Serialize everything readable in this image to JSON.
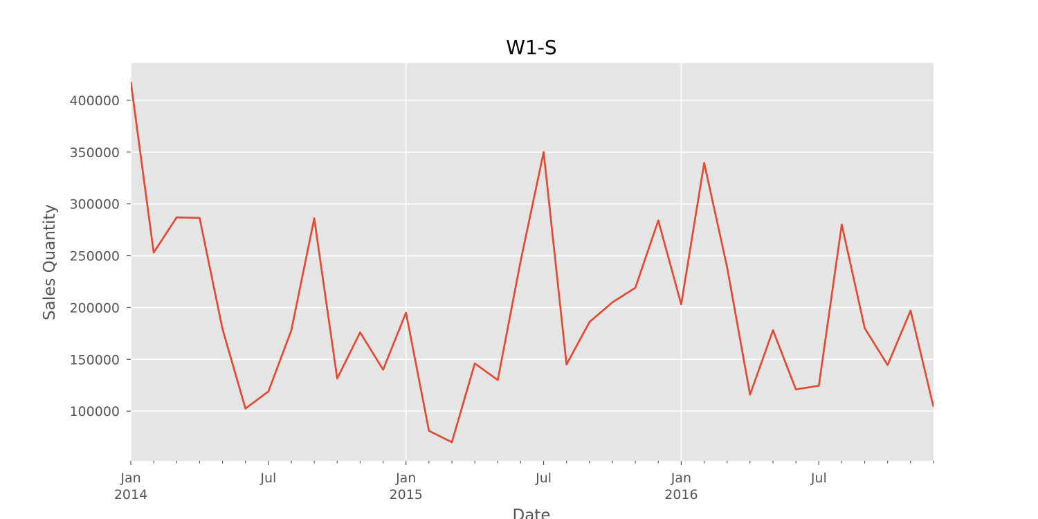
{
  "chart_data": {
    "type": "line",
    "title": "W1-S",
    "xlabel": "Date",
    "ylabel": "Sales Quantity",
    "x": [
      "2014-01",
      "2014-02",
      "2014-03",
      "2014-04",
      "2014-05",
      "2014-06",
      "2014-07",
      "2014-08",
      "2014-09",
      "2014-10",
      "2014-11",
      "2014-12",
      "2015-01",
      "2015-02",
      "2015-03",
      "2015-04",
      "2015-05",
      "2015-06",
      "2015-07",
      "2015-08",
      "2015-09",
      "2015-10",
      "2015-11",
      "2015-12",
      "2016-01",
      "2016-02",
      "2016-03",
      "2016-04",
      "2016-05",
      "2016-06",
      "2016-07",
      "2016-08",
      "2016-09",
      "2016-10",
      "2016-11",
      "2016-12"
    ],
    "series": [
      {
        "name": "W1-S",
        "values": [
          418000,
          253000,
          287000,
          286500,
          179000,
          102500,
          119000,
          178000,
          286000,
          131500,
          176000,
          140000,
          195000,
          81000,
          70000,
          146000,
          130000,
          245000,
          350000,
          145000,
          186000,
          205000,
          219000,
          284000,
          203000,
          339500,
          239000,
          116000,
          178000,
          121000,
          124500,
          280000,
          180000,
          144500,
          197000,
          104000
        ]
      }
    ],
    "ylim": [
      52000,
      436000
    ],
    "y_ticks": [
      {
        "value": 100000,
        "label": "100000"
      },
      {
        "value": 150000,
        "label": "150000"
      },
      {
        "value": 200000,
        "label": "200000"
      },
      {
        "value": 250000,
        "label": "250000"
      },
      {
        "value": 300000,
        "label": "300000"
      },
      {
        "value": 350000,
        "label": "350000"
      },
      {
        "value": 400000,
        "label": "400000"
      }
    ],
    "x_major_ticks": [
      {
        "index": 0,
        "label": "Jan",
        "sublabel": "2014"
      },
      {
        "index": 6,
        "label": "Jul",
        "sublabel": ""
      },
      {
        "index": 12,
        "label": "Jan",
        "sublabel": "2015"
      },
      {
        "index": 18,
        "label": "Jul",
        "sublabel": ""
      },
      {
        "index": 24,
        "label": "Jan",
        "sublabel": "2016"
      },
      {
        "index": 30,
        "label": "Jul",
        "sublabel": ""
      }
    ],
    "x_gridlines_at": [
      0,
      12,
      24
    ],
    "grid": true,
    "colors": {
      "line": "#e24a33",
      "plot_background": "#e5e5e5",
      "grid": "#ffffff",
      "text": "#555555",
      "title": "#000000"
    }
  }
}
